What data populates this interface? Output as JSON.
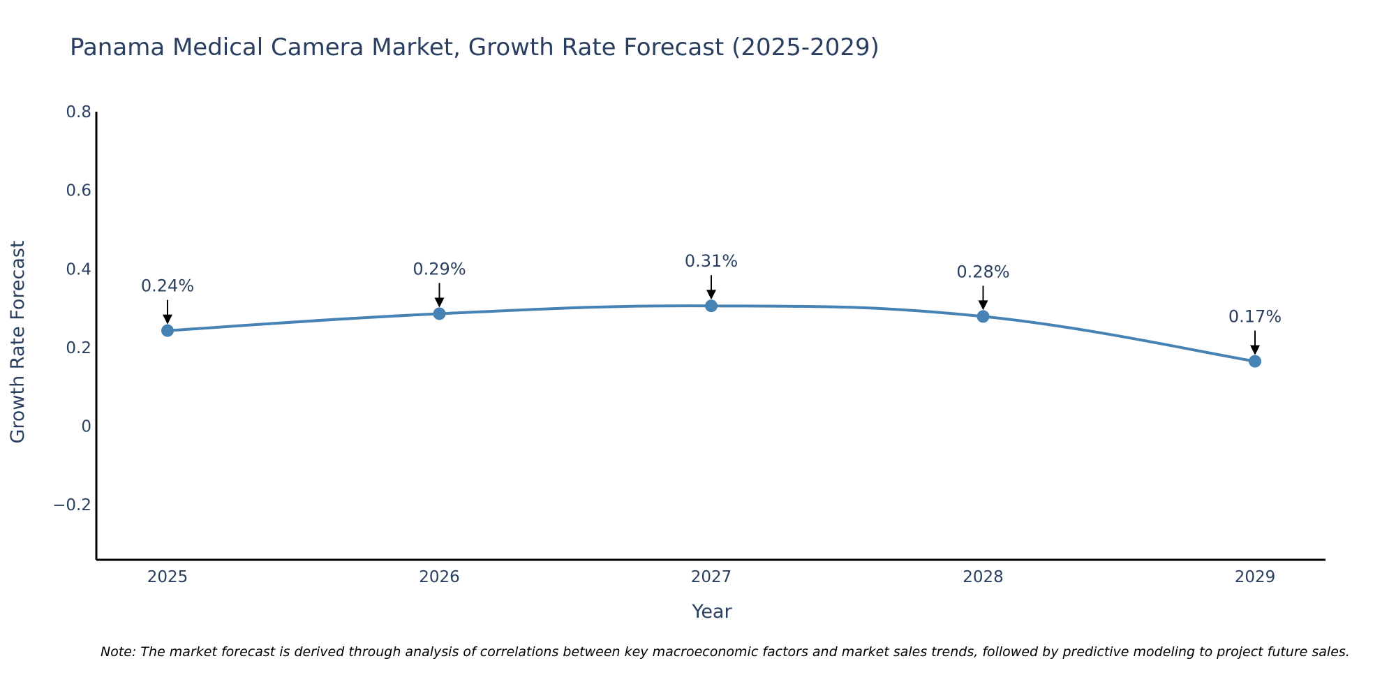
{
  "chart_data": {
    "type": "line",
    "title": "Panama Medical Camera Market, Growth Rate Forecast (2025-2029)",
    "xlabel": "Year",
    "ylabel": "Growth Rate Forecast",
    "categories": [
      "2025",
      "2026",
      "2027",
      "2028",
      "2029"
    ],
    "series": [
      {
        "name": "Growth Rate Forecast",
        "values": [
          0.243,
          0.286,
          0.306,
          0.279,
          0.165
        ],
        "labels": [
          "0.24%",
          "0.29%",
          "0.31%",
          "0.28%",
          "0.17%"
        ],
        "color": "#4682b4"
      }
    ],
    "ylim": [
      -0.34,
      0.8
    ],
    "yticks": [
      {
        "value": 0.8,
        "label": "0.8"
      },
      {
        "value": 0.6,
        "label": "0.6"
      },
      {
        "value": 0.4,
        "label": "0.4"
      },
      {
        "value": 0.2,
        "label": "0.2"
      },
      {
        "value": 0,
        "label": "0"
      },
      {
        "value": -0.2,
        "label": "−0.2"
      }
    ],
    "grid": false,
    "line_shape": "spline",
    "note": "Note: The market forecast is derived through analysis of correlations between key macroeconomic factors and market sales trends, followed by predictive modeling to project future sales."
  },
  "colors": {
    "line": "#4682b4",
    "text": "#2a3f5f",
    "axis": "#000000",
    "arrow": "#000000"
  }
}
